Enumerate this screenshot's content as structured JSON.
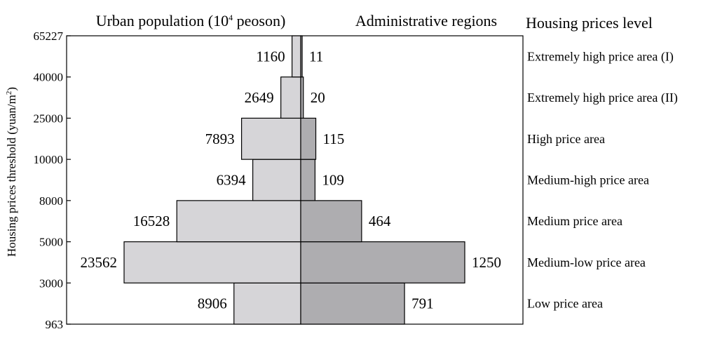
{
  "chart_data": {
    "type": "bar",
    "title": "",
    "left_header": "Urban population (10",
    "left_header_sup": "4",
    "left_header_tail": " peoson)",
    "right_header": "Administrative regions",
    "level_header": "Housing prices level",
    "ylabel": "Housing prices threshold (yuan/m",
    "ylabel_sup": "2",
    "ylabel_tail": ")",
    "y_ticks": [
      "963",
      "3000",
      "5000",
      "8000",
      "10000",
      "25000",
      "40000",
      "65227"
    ],
    "levels": [
      "Low price area",
      "Medium-low price area",
      "Medium price area",
      "Medium-high price area",
      "High price area",
      "Extremely high price area (II)",
      "Extremely high price area (I)"
    ],
    "series": [
      {
        "name": "Urban population (10^4 peoson)",
        "values": [
          8906,
          23562,
          16528,
          6394,
          7893,
          2649,
          1160
        ]
      },
      {
        "name": "Administrative regions",
        "values": [
          791,
          1250,
          464,
          109,
          115,
          20,
          11
        ]
      }
    ],
    "colors": {
      "left_fill": "#d6d5d8",
      "right_fill": "#aeadb0",
      "stroke": "#000000"
    }
  }
}
